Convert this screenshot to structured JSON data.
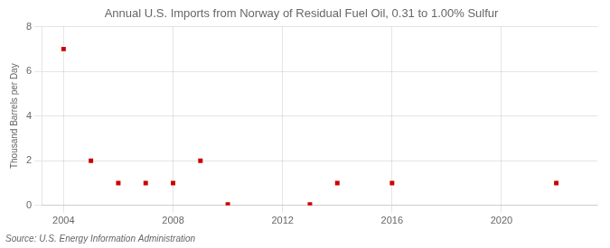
{
  "chart_data": {
    "type": "scatter",
    "title": "Annual U.S. Imports from Norway of Residual Fuel Oil, 0.31 to 1.00% Sulfur",
    "ylabel": "Thousand Barrels per Day",
    "source": "Source: U.S. Energy Information Administration",
    "x": [
      2004,
      2005,
      2006,
      2007,
      2008,
      2009,
      2010,
      2013,
      2014,
      2016,
      2022
    ],
    "values": [
      7,
      2,
      1,
      1,
      1,
      2,
      0.04,
      0.04,
      1,
      1,
      1
    ],
    "color": "#cc0000",
    "marker": "square",
    "xlim": [
      2003.2,
      2023.5
    ],
    "xticks": [
      2004,
      2008,
      2012,
      2016,
      2020
    ],
    "ylim": [
      0,
      8
    ],
    "yticks": [
      0,
      2,
      4,
      6,
      8
    ],
    "grid": true
  }
}
